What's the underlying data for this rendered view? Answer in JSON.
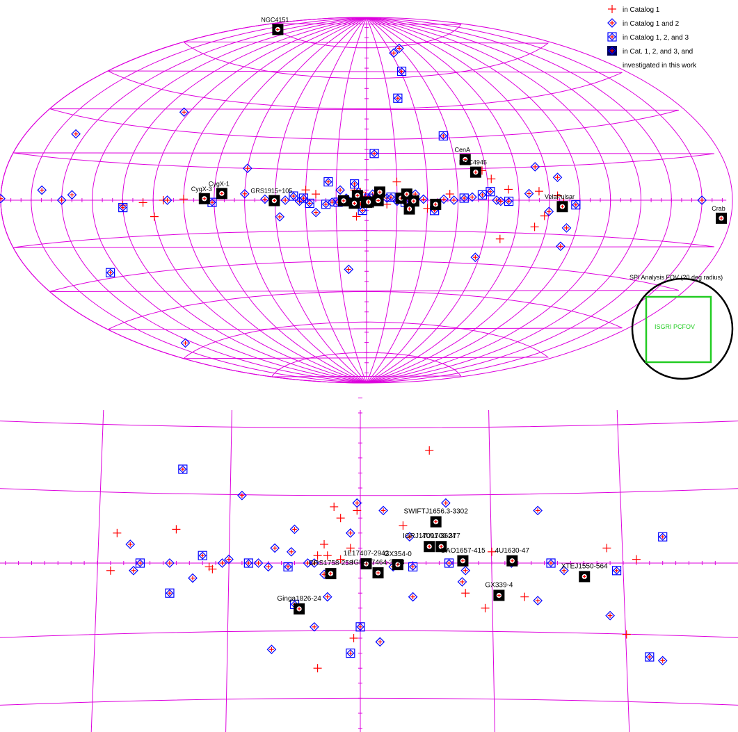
{
  "colors": {
    "grid": "#dd00dd",
    "cat1": "#ff0000",
    "cat12": "#0000ff",
    "cat123": "#0000ff",
    "investigated": "#000000",
    "fov_circle": "#000000",
    "fov_square": "#22cc22"
  },
  "chart_data": [
    {
      "type": "scatter",
      "projection": "aitoff (galactic coordinates)",
      "legend_position": "top-right",
      "legend": [
        {
          "key": "cat1",
          "label": "in Catalog 1"
        },
        {
          "key": "cat12",
          "label": "in Catalog 1 and 2"
        },
        {
          "key": "cat123",
          "label": "in Catalog 1, 2, and 3"
        },
        {
          "key": "investigated",
          "label": "in Cat. 1, 2, and 3, and"
        },
        {
          "key": "investigated_cont",
          "label": "investigated in this work"
        }
      ],
      "fov_annotation": {
        "outer_label": "SPI Analysis FOV (20 deg radius)",
        "inner_label": "ISGRI PCFOV"
      },
      "investigated_sources": [
        {
          "name": "NGC4151",
          "l": 155.1,
          "b": 75.1
        },
        {
          "name": "CenA",
          "l": 309.5,
          "b": 19.4
        },
        {
          "name": "NGC4945",
          "l": 305.3,
          "b": 13.3
        },
        {
          "name": "CygX-1",
          "l": 71.3,
          "b": 3.1
        },
        {
          "name": "CygX-3",
          "l": 79.8,
          "b": 0.7
        },
        {
          "name": "GRS1915+105",
          "l": 45.4,
          "b": -0.2
        },
        {
          "name": "VelaPulsar",
          "l": 263.6,
          "b": -2.8
        },
        {
          "name": "Crab",
          "l": 184.6,
          "b": -5.8
        },
        {
          "name": "",
          "l": 0.0,
          "b": -1.0
        },
        {
          "name": "",
          "l": 359.1,
          "b": -0.9
        },
        {
          "name": "",
          "l": 354.3,
          "b": -0.2
        },
        {
          "name": "",
          "l": 343.0,
          "b": 1.0
        },
        {
          "name": "",
          "l": 340.2,
          "b": 3.0
        },
        {
          "name": "",
          "l": 336.8,
          "b": -0.4
        },
        {
          "name": "",
          "l": 338.9,
          "b": -4.3
        },
        {
          "name": "",
          "l": 326.0,
          "b": -2.0
        },
        {
          "name": "",
          "l": 11.3,
          "b": -0.3
        },
        {
          "name": "",
          "l": 4.5,
          "b": 2.3
        },
        {
          "name": "",
          "l": 6.0,
          "b": -1.5
        },
        {
          "name": "",
          "l": 353.5,
          "b": 4.0
        }
      ],
      "catalog_123": [
        {
          "l": 329.0,
          "b": 63.0
        },
        {
          "l": 339.0,
          "b": 50.0
        },
        {
          "l": 356.0,
          "b": 23.0
        },
        {
          "l": 318.0,
          "b": 31.0
        },
        {
          "l": 140.0,
          "b": -28.0
        },
        {
          "l": 120.0,
          "b": -3.0
        },
        {
          "l": 76.0,
          "b": -1.0
        },
        {
          "l": 299.0,
          "b": 4.0
        },
        {
          "l": 290.0,
          "b": -0.5
        },
        {
          "l": 257.0,
          "b": -2.0
        },
        {
          "l": 20.0,
          "b": -2.0
        },
        {
          "l": 14.0,
          "b": -1.0
        },
        {
          "l": 2.0,
          "b": -5.0
        },
        {
          "l": 6.0,
          "b": 8.0
        },
        {
          "l": 31.0,
          "b": 1.0
        },
        {
          "l": 28.0,
          "b": -1.5
        },
        {
          "l": 348.0,
          "b": 1.5
        },
        {
          "l": 341.0,
          "b": -1.0
        },
        {
          "l": 326.5,
          "b": -5.0
        },
        {
          "l": 312.0,
          "b": 1.0
        },
        {
          "l": 303.0,
          "b": 2.5
        },
        {
          "l": 359.0,
          "b": 1.0
        },
        {
          "l": 36.0,
          "b": 2.0
        },
        {
          "l": 19.0,
          "b": 9.0
        }
      ],
      "catalog_12": [
        {
          "l": 316.0,
          "b": 74.0
        },
        {
          "l": 327.0,
          "b": 72.0
        },
        {
          "l": 108.0,
          "b": 38.0
        },
        {
          "l": 155.0,
          "b": 24.0
        },
        {
          "l": 60.0,
          "b": 15.0
        },
        {
          "l": 275.0,
          "b": 15.0
        },
        {
          "l": 265.0,
          "b": 10.0
        },
        {
          "l": 280.0,
          "b": 3.0
        },
        {
          "l": 160.0,
          "b": 3.5
        },
        {
          "l": 145.0,
          "b": 2.0
        },
        {
          "l": 150.0,
          "b": 0.0
        },
        {
          "l": 180.0,
          "b": 0.5
        },
        {
          "l": 195.0,
          "b": 0.0
        },
        {
          "l": 98.0,
          "b": 0.0
        },
        {
          "l": 60.0,
          "b": 3.0
        },
        {
          "l": 50.0,
          "b": 0.5
        },
        {
          "l": 40.0,
          "b": 0.0
        },
        {
          "l": 33.0,
          "b": -0.5
        },
        {
          "l": 17.0,
          "b": -1.0
        },
        {
          "l": 10.0,
          "b": 1.0
        },
        {
          "l": 3.0,
          "b": -2.0
        },
        {
          "l": 357.0,
          "b": 3.0
        },
        {
          "l": 350.0,
          "b": 1.0
        },
        {
          "l": 345.0,
          "b": -0.5
        },
        {
          "l": 336.0,
          "b": 3.0
        },
        {
          "l": 332.0,
          "b": 0.5
        },
        {
          "l": 322.0,
          "b": 0.5
        },
        {
          "l": 317.0,
          "b": 0.0
        },
        {
          "l": 308.0,
          "b": 1.5
        },
        {
          "l": 296.0,
          "b": 0.0
        },
        {
          "l": 294.0,
          "b": -0.5
        },
        {
          "l": 270.0,
          "b": -5.0
        },
        {
          "l": 260.0,
          "b": -12.0
        },
        {
          "l": 260.0,
          "b": -20.0
        },
        {
          "l": 302.0,
          "b": -27.0
        },
        {
          "l": 10.0,
          "b": -34.0
        },
        {
          "l": 155.0,
          "b": -57.0
        },
        {
          "l": 43.0,
          "b": -8.0
        },
        {
          "l": 25.0,
          "b": -6.0
        },
        {
          "l": 13.0,
          "b": 5.0
        },
        {
          "l": 4.0,
          "b": 4.0
        }
      ],
      "catalog_1": [
        {
          "l": 302.0,
          "b": 14.0
        },
        {
          "l": 298.0,
          "b": 10.0
        },
        {
          "l": 345.0,
          "b": 9.0
        },
        {
          "l": 25.0,
          "b": 3.0
        },
        {
          "l": 30.0,
          "b": 5.0
        },
        {
          "l": 6.0,
          "b": 5.0
        },
        {
          "l": 3.0,
          "b": 4.0
        },
        {
          "l": 355.0,
          "b": 2.0
        },
        {
          "l": 319.0,
          "b": 3.0
        },
        {
          "l": 290.0,
          "b": 5.0
        },
        {
          "l": 275.0,
          "b": 4.0
        },
        {
          "l": 266.0,
          "b": 2.0
        },
        {
          "l": 263.0,
          "b": -1.0
        },
        {
          "l": 90.0,
          "b": 0.5
        },
        {
          "l": 100.0,
          "b": 0.0
        },
        {
          "l": 110.0,
          "b": -1.0
        },
        {
          "l": 120.0,
          "b": -2.0
        },
        {
          "l": 105.0,
          "b": -7.0
        },
        {
          "l": 272.0,
          "b": -7.0
        },
        {
          "l": 276.0,
          "b": -12.0
        },
        {
          "l": 292.0,
          "b": -18.0
        },
        {
          "l": 330.0,
          "b": -4.0
        },
        {
          "l": 350.0,
          "b": -2.0
        },
        {
          "l": 5.0,
          "b": -8.0
        },
        {
          "l": 0.5,
          "b": 2.0
        }
      ]
    },
    {
      "type": "scatter",
      "region": "Galactic Center zoom",
      "investigated_sources": [
        {
          "name": "SWIFTJ1656.3-3302",
          "l": 348.5,
          "b": 5.5
        },
        {
          "name": "IGRJ17091-3624",
          "l": 349.5,
          "b": 2.2
        },
        {
          "name": "4U1700-377",
          "l": 347.7,
          "b": 2.2
        },
        {
          "name": "OAO1657-415",
          "l": 344.4,
          "b": 0.3
        },
        {
          "name": "4U1630-47",
          "l": 336.9,
          "b": 0.3
        },
        {
          "name": "1E17407-2942",
          "l": 359.1,
          "b": -0.1
        },
        {
          "name": "GX354-0",
          "l": 354.3,
          "b": -0.2
        },
        {
          "name": "GRS1758-258",
          "l": 4.5,
          "b": -1.4
        },
        {
          "name": "IGRJ17464-3213",
          "l": 357.3,
          "b": -1.3
        },
        {
          "name": "XTEJ1550-564",
          "l": 325.9,
          "b": -1.8
        },
        {
          "name": "GX339-4",
          "l": 338.9,
          "b": -4.3
        },
        {
          "name": "Ginga1826-24",
          "l": 9.3,
          "b": -6.1
        }
      ],
      "catalog_123": [
        {
          "l": 27.0,
          "b": 12.5
        },
        {
          "l": 24.0,
          "b": 1.0
        },
        {
          "l": 29.0,
          "b": -4.0
        },
        {
          "l": 33.5,
          "b": 0.0
        },
        {
          "l": 17.0,
          "b": 0.0
        },
        {
          "l": 11.0,
          "b": -0.5
        },
        {
          "l": 10.0,
          "b": -5.5
        },
        {
          "l": 0.0,
          "b": -8.5
        },
        {
          "l": 1.5,
          "b": -12.0
        },
        {
          "l": 352.0,
          "b": -0.5
        },
        {
          "l": 331.0,
          "b": 0.0
        },
        {
          "l": 321.0,
          "b": -1.0
        },
        {
          "l": 316.0,
          "b": -12.5
        },
        {
          "l": 314.0,
          "b": 3.5
        },
        {
          "l": 346.5,
          "b": 0.0
        }
      ],
      "catalog_12": [
        {
          "l": 18.0,
          "b": 9.0
        },
        {
          "l": 35.0,
          "b": 2.5
        },
        {
          "l": 34.5,
          "b": -1.0
        },
        {
          "l": 29.0,
          "b": 0.0
        },
        {
          "l": 25.5,
          "b": -2.0
        },
        {
          "l": 21.0,
          "b": 0.0
        },
        {
          "l": 20.0,
          "b": 0.5
        },
        {
          "l": 15.5,
          "b": 0.0
        },
        {
          "l": 14.0,
          "b": -0.5
        },
        {
          "l": 13.0,
          "b": 2.0
        },
        {
          "l": 10.5,
          "b": 1.5
        },
        {
          "l": 8.0,
          "b": 0.0
        },
        {
          "l": 7.0,
          "b": 0.0
        },
        {
          "l": 5.5,
          "b": -1.5
        },
        {
          "l": 5.0,
          "b": -4.5
        },
        {
          "l": 1.5,
          "b": 4.0
        },
        {
          "l": 0.5,
          "b": 8.0
        },
        {
          "l": 356.5,
          "b": 7.0
        },
        {
          "l": 355.0,
          "b": -0.5
        },
        {
          "l": 352.5,
          "b": 3.5
        },
        {
          "l": 347.0,
          "b": 8.0
        },
        {
          "l": 344.0,
          "b": -1.0
        },
        {
          "l": 344.5,
          "b": -2.5
        },
        {
          "l": 337.0,
          "b": 0.0
        },
        {
          "l": 333.0,
          "b": 7.0
        },
        {
          "l": 333.0,
          "b": -5.0
        },
        {
          "l": 329.0,
          "b": -1.0
        },
        {
          "l": 322.0,
          "b": -7.0
        },
        {
          "l": 314.0,
          "b": -13.0
        },
        {
          "l": 10.0,
          "b": 4.5
        },
        {
          "l": 357.0,
          "b": -10.5
        },
        {
          "l": 7.0,
          "b": -8.5
        },
        {
          "l": 13.5,
          "b": -11.5
        },
        {
          "l": 352.0,
          "b": -4.5
        }
      ],
      "catalog_1": [
        {
          "l": 349.5,
          "b": 15.0
        },
        {
          "l": 4.0,
          "b": 7.5
        },
        {
          "l": 3.0,
          "b": 6.0
        },
        {
          "l": 0.5,
          "b": 7.0
        },
        {
          "l": 28.0,
          "b": 4.5
        },
        {
          "l": 37.0,
          "b": 4.0
        },
        {
          "l": 353.5,
          "b": 5.0
        },
        {
          "l": 5.5,
          "b": 2.5
        },
        {
          "l": 1.5,
          "b": 2.0
        },
        {
          "l": 6.5,
          "b": 1.0
        },
        {
          "l": 5.0,
          "b": 1.0
        },
        {
          "l": 3.0,
          "b": 0.5
        },
        {
          "l": 23.0,
          "b": -0.5
        },
        {
          "l": 22.5,
          "b": -0.8
        },
        {
          "l": 38.0,
          "b": -1.0
        },
        {
          "l": 344.0,
          "b": -4.0
        },
        {
          "l": 340.0,
          "b": 1.5
        },
        {
          "l": 341.0,
          "b": -6.0
        },
        {
          "l": 335.0,
          "b": -4.5
        },
        {
          "l": 322.5,
          "b": 2.0
        },
        {
          "l": 318.0,
          "b": 0.5
        },
        {
          "l": 319.5,
          "b": -9.5
        },
        {
          "l": 1.0,
          "b": -10.0
        },
        {
          "l": 6.5,
          "b": -14.0
        }
      ]
    }
  ]
}
